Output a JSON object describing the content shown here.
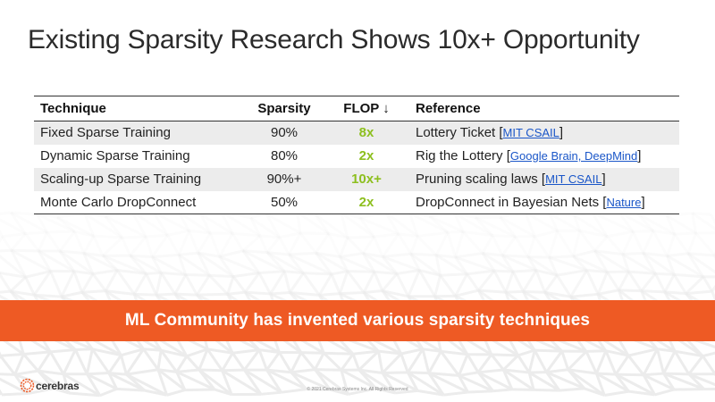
{
  "slide": {
    "title": "Existing Sparsity Research Shows 10x+ Opportunity"
  },
  "table": {
    "headers": {
      "technique": "Technique",
      "sparsity": "Sparsity",
      "flop": "FLOP ↓",
      "reference": "Reference"
    },
    "rows": [
      {
        "technique": "Fixed Sparse Training",
        "sparsity": "90%",
        "flop": "8x",
        "ref_text": "Lottery Ticket",
        "ref_link": "MIT CSAIL"
      },
      {
        "technique": "Dynamic Sparse Training",
        "sparsity": "80%",
        "flop": "2x",
        "ref_text": "Rig the Lottery",
        "ref_link": "Google Brain, DeepMind"
      },
      {
        "technique": "Scaling-up Sparse Training",
        "sparsity": "90%+",
        "flop": "10x+",
        "ref_text": "Pruning scaling laws",
        "ref_link": "MIT CSAIL"
      },
      {
        "technique": "Monte Carlo DropConnect",
        "sparsity": "50%",
        "flop": "2x",
        "ref_text": "DropConnect in Bayesian Nets",
        "ref_link": "Nature"
      }
    ]
  },
  "banner": {
    "text": "ML Community has invented various sparsity techniques",
    "color": "#ee5a24"
  },
  "footer": {
    "logo_text": "cerebras",
    "copyright": "© 2021 Cerebras Systems Inc. All Rights Reserved"
  },
  "colors": {
    "flop_accent": "#8dbf1f",
    "link": "#1a56c8",
    "row_shade": "#ececec"
  },
  "icons": {
    "logo": "cerebras-logo-icon"
  }
}
